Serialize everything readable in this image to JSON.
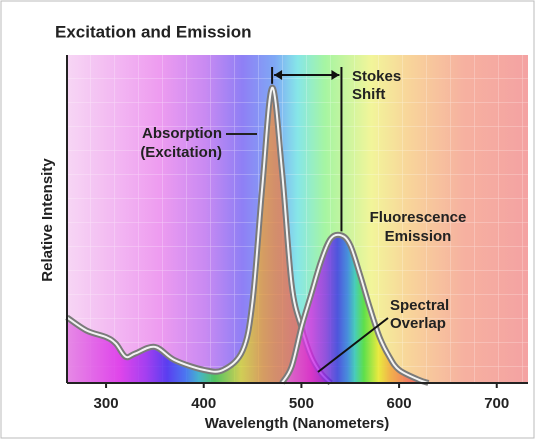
{
  "chart_data": {
    "type": "line",
    "title": "Excitation and Emission",
    "xlabel": "Wavelength (Nanometers)",
    "ylabel": "Relative Intensity",
    "xlim": [
      260,
      732
    ],
    "xticks": [
      300,
      400,
      500,
      600,
      700
    ],
    "ylim": [
      0,
      100
    ],
    "series": [
      {
        "color": "#7a7a7a",
        "x": [
          260,
          280,
          300,
          310,
          320,
          330,
          350,
          370,
          400,
          420,
          440,
          450,
          460,
          470,
          480,
          490,
          500,
          510,
          520,
          530
        ],
        "values": [
          20,
          16,
          14,
          12,
          8,
          9,
          11,
          7,
          4,
          4,
          10,
          25,
          60,
          90,
          65,
          30,
          17,
          8,
          3,
          0
        ]
      },
      {
        "color": "#7a7a7a",
        "x": [
          480,
          490,
          500,
          510,
          520,
          530,
          541,
          550,
          560,
          570,
          580,
          590,
          600,
          620,
          630
        ],
        "values": [
          0,
          5,
          17,
          27,
          37,
          44,
          45,
          42,
          33,
          23,
          14,
          8,
          4,
          1,
          0
        ]
      }
    ],
    "annotations": {
      "absorption": [
        "Absorption",
        "(Excitation)"
      ],
      "stokes": [
        "Stokes",
        "Shift"
      ],
      "emission": [
        "Fluorescence",
        "Emission"
      ],
      "overlap": [
        "Spectral",
        "Overlap"
      ]
    }
  }
}
